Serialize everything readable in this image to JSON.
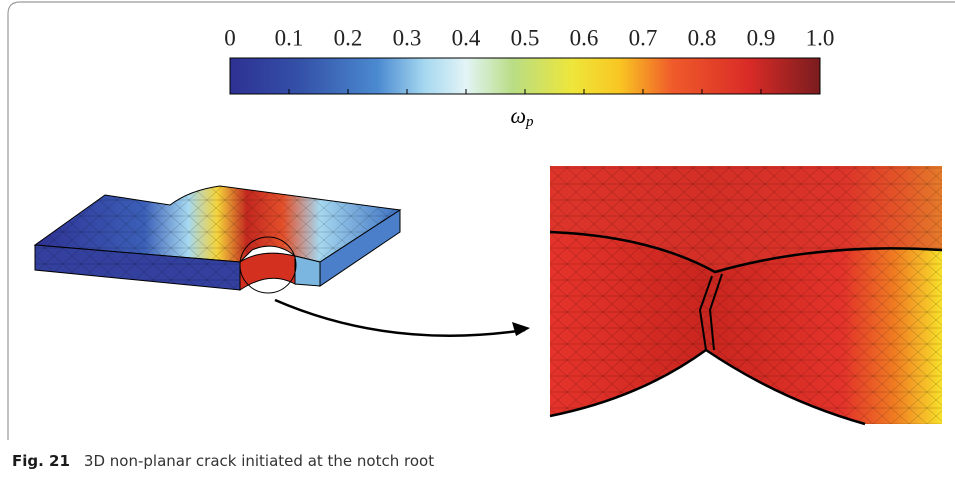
{
  "colorbar": {
    "range": [
      0,
      1
    ],
    "ticks": [
      0,
      0.1,
      0.2,
      0.3,
      0.4,
      0.5,
      0.6,
      0.7,
      0.8,
      0.9,
      {
        "value": 1,
        "label": "1.0"
      }
    ],
    "label": "ω",
    "label_subscript": "p"
  },
  "caption": {
    "label": "Fig. 21",
    "text": "3D non-planar crack initiated at the notch root"
  }
}
